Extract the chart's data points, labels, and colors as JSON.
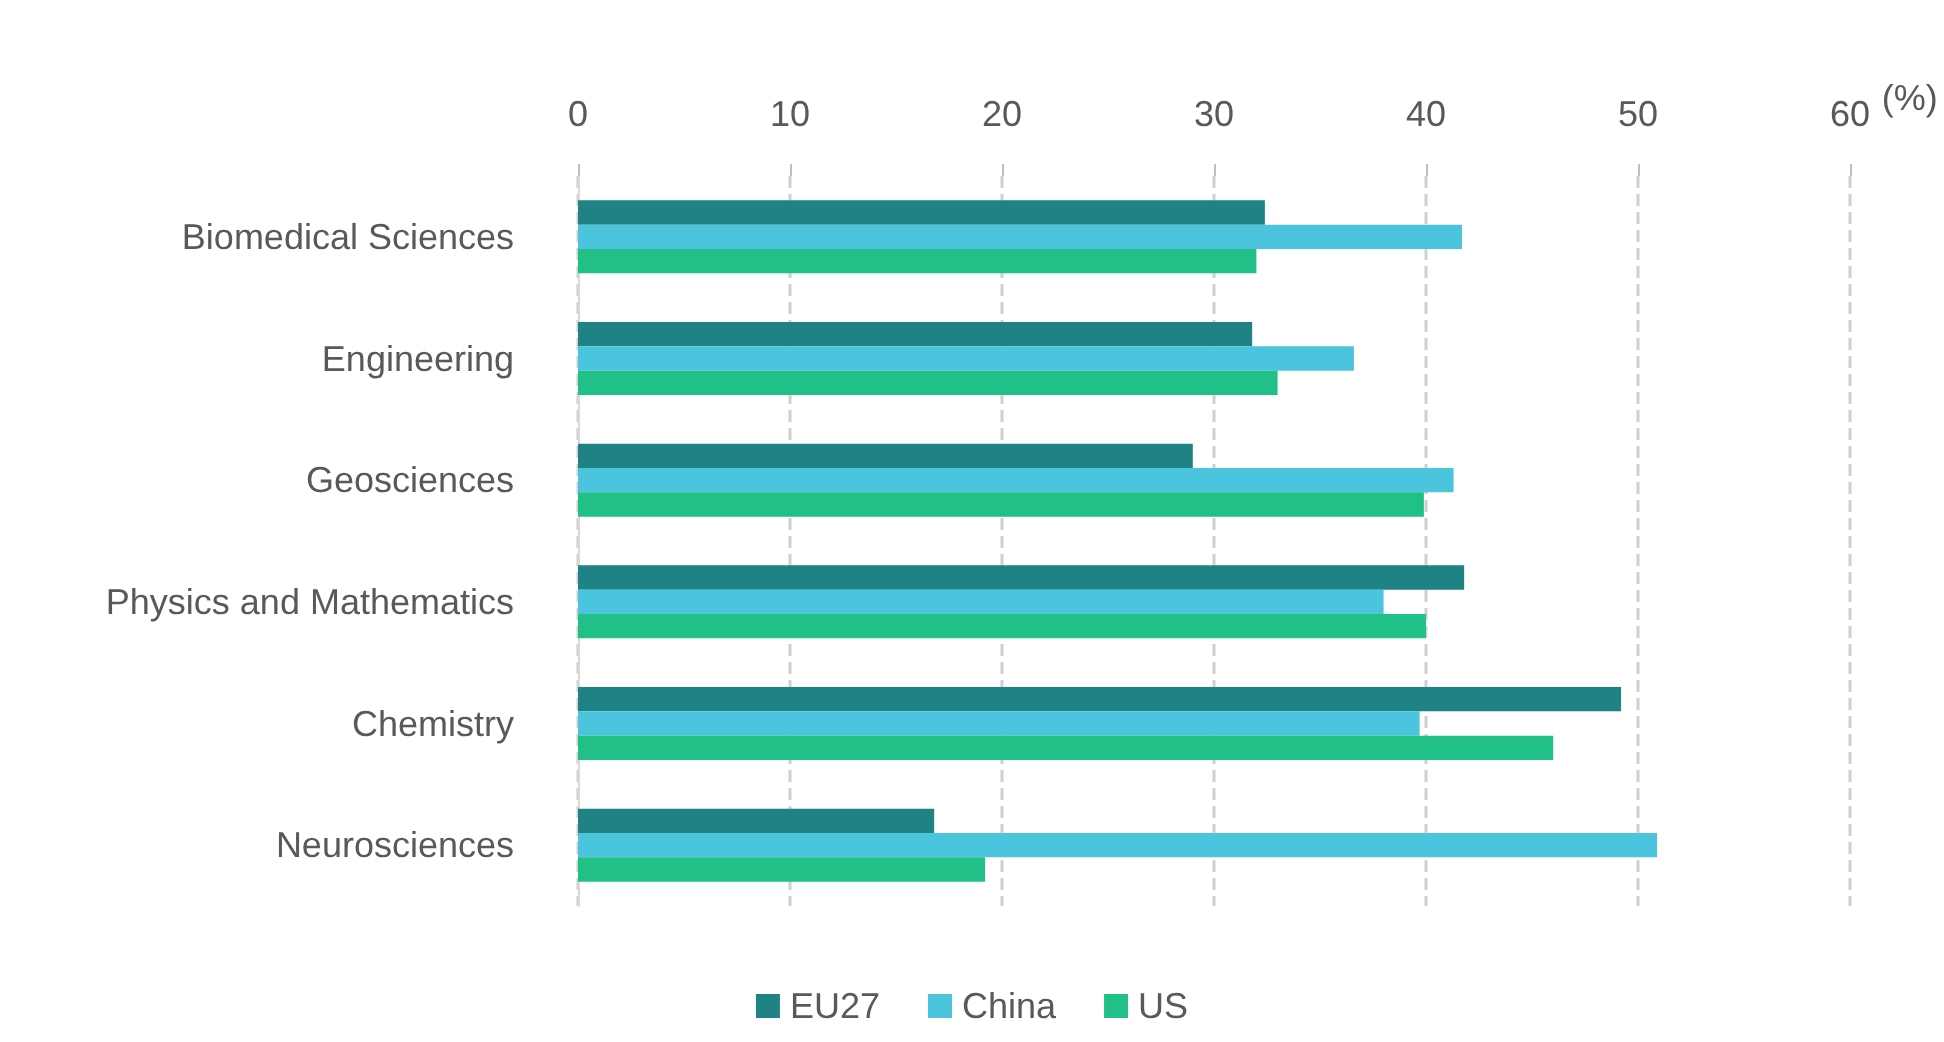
{
  "chart_data": {
    "type": "bar",
    "orientation": "horizontal",
    "xlabel": "(%)",
    "categories": [
      "Biomedical Sciences",
      "Engineering",
      "Geosciences",
      "Physics and Mathematics",
      "Chemistry",
      "Neurosciences"
    ],
    "series": [
      {
        "name": "EU27",
        "color": "#1f8285",
        "values": [
          32.4,
          31.8,
          29.0,
          41.8,
          49.2,
          16.8
        ]
      },
      {
        "name": "China",
        "color": "#4bc4de",
        "values": [
          41.7,
          36.6,
          41.3,
          38.0,
          39.7,
          50.9
        ]
      },
      {
        "name": "US",
        "color": "#20c086",
        "values": [
          32.0,
          33.0,
          39.9,
          40.0,
          46.0,
          19.2
        ]
      }
    ],
    "xlim": [
      0,
      60
    ],
    "xticks": [
      0,
      10,
      20,
      30,
      40,
      50,
      60
    ],
    "grid": "x",
    "legend": "bottom"
  }
}
